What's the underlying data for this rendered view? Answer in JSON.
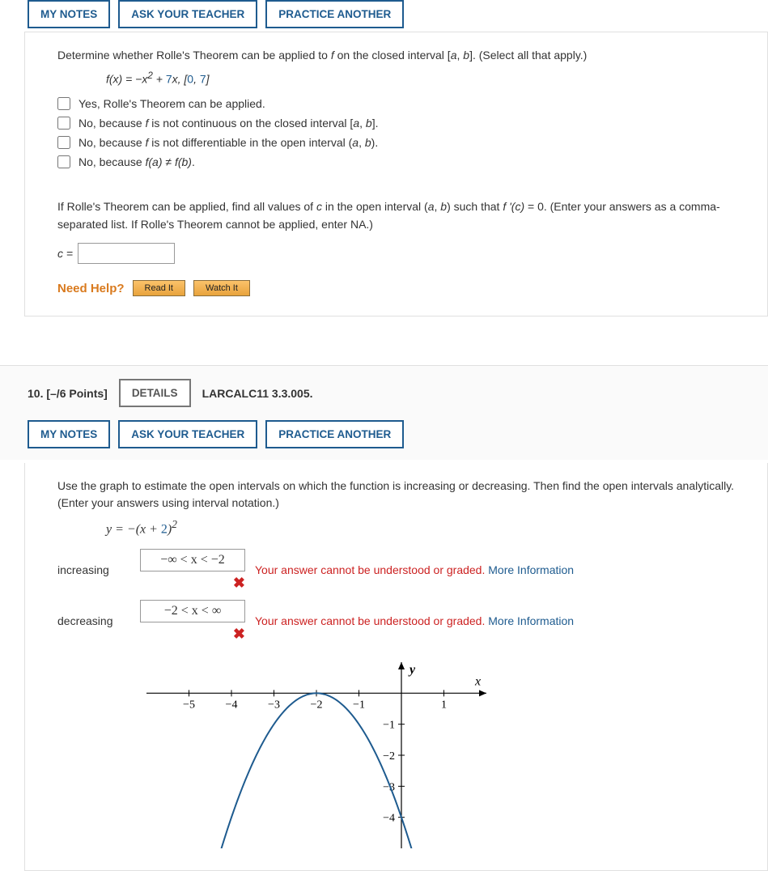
{
  "tabs": {
    "notes": "MY NOTES",
    "ask": "ASK YOUR TEACHER",
    "practice": "PRACTICE ANOTHER"
  },
  "q9": {
    "prompt_pre": "Determine whether Rolle's Theorem can be applied to ",
    "prompt_mid": " on the closed interval [",
    "prompt_end": "]. (Select all that apply.)",
    "f_var": "f",
    "a_var": "a",
    "b_var": "b",
    "formula_lhs": "f(x) = −x",
    "formula_sup": "2",
    "formula_plus": " + ",
    "formula_coef": "7",
    "formula_tail": "x,    [",
    "formula_a": "0",
    "formula_comma": ", ",
    "formula_b": "7",
    "formula_close": "]",
    "opt1": "Yes, Rolle's Theorem can be applied.",
    "opt2_pre": "No, because ",
    "opt2_mid": " is not continuous on the closed interval [",
    "opt2_end": "].",
    "opt3_pre": "No, because ",
    "opt3_mid": " is not differentiable in the open interval (",
    "opt3_end": ").",
    "opt4_pre": "No, because ",
    "opt4_fa": "f(a)",
    "opt4_ne": " ≠ ",
    "opt4_fb": "f(b)",
    "opt4_dot": ".",
    "sub_prompt": "If Rolle's Theorem can be applied, find all values of c in the open interval (a, b) such that f '(c) = 0. (Enter your answers as a comma-separated list. If Rolle's Theorem cannot be applied, enter NA.)",
    "c_label": "c =",
    "need_help": "Need Help?",
    "read_it": "Read It",
    "watch_it": "Watch It"
  },
  "q10": {
    "points": "10.  [–/6 Points]",
    "details": "DETAILS",
    "ref": "LARCALC11 3.3.005.",
    "prompt": "Use the graph to estimate the open intervals on which the function is increasing or decreasing. Then find the open intervals analytically. (Enter your answers using interval notation.)",
    "eq_lhs": "y = −(x + ",
    "eq_coef": "2",
    "eq_rparen": ")",
    "eq_sup": "2",
    "inc_label": "increasing",
    "dec_label": "decreasing",
    "inc_value": "−∞ < x < −2",
    "dec_value": "−2 < x < ∞",
    "feedback_text": "Your answer cannot be understood or graded. ",
    "more_info": "More Information",
    "x_mark": "✖",
    "graph": {
      "xlabel": "x",
      "ylabel": "y",
      "xmin": -6,
      "xmax": 2,
      "ymin": -5,
      "ymax": 1,
      "xticks": [
        -5,
        -4,
        -3,
        -2,
        -1,
        1
      ],
      "yticks": [
        -1,
        -2,
        -3,
        -4
      ],
      "curve_color": "#1e5b8f",
      "axis_color": "#000000"
    }
  }
}
